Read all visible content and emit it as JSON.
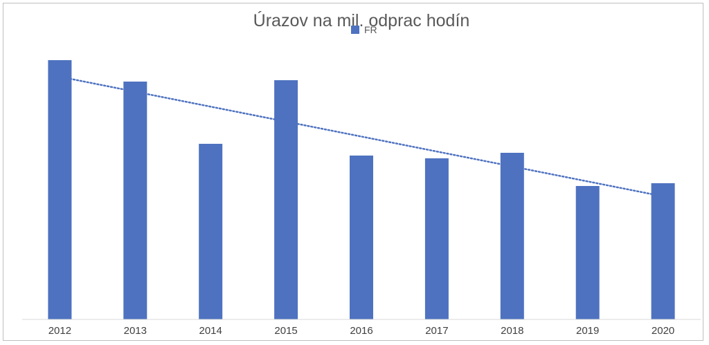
{
  "chart_data": {
    "type": "bar",
    "title": "Úrazov na mil. odprac hodín",
    "xlabel": "",
    "ylabel": "",
    "categories": [
      "2012",
      "2013",
      "2014",
      "2015",
      "2016",
      "2017",
      "2018",
      "2019",
      "2020"
    ],
    "series": [
      {
        "name": "FR",
        "values": [
          37.5,
          34.4,
          25.4,
          34.6,
          23.7,
          23.3,
          24.1,
          19.3,
          19.7
        ],
        "color": "#4E72C0"
      }
    ],
    "trendline": {
      "type": "linear",
      "start": 35.1,
      "end": 17.8,
      "color": "#4E72C0",
      "style": "dotted"
    },
    "ylim": [
      0,
      40
    ],
    "grid": false,
    "legend": "top-center"
  }
}
